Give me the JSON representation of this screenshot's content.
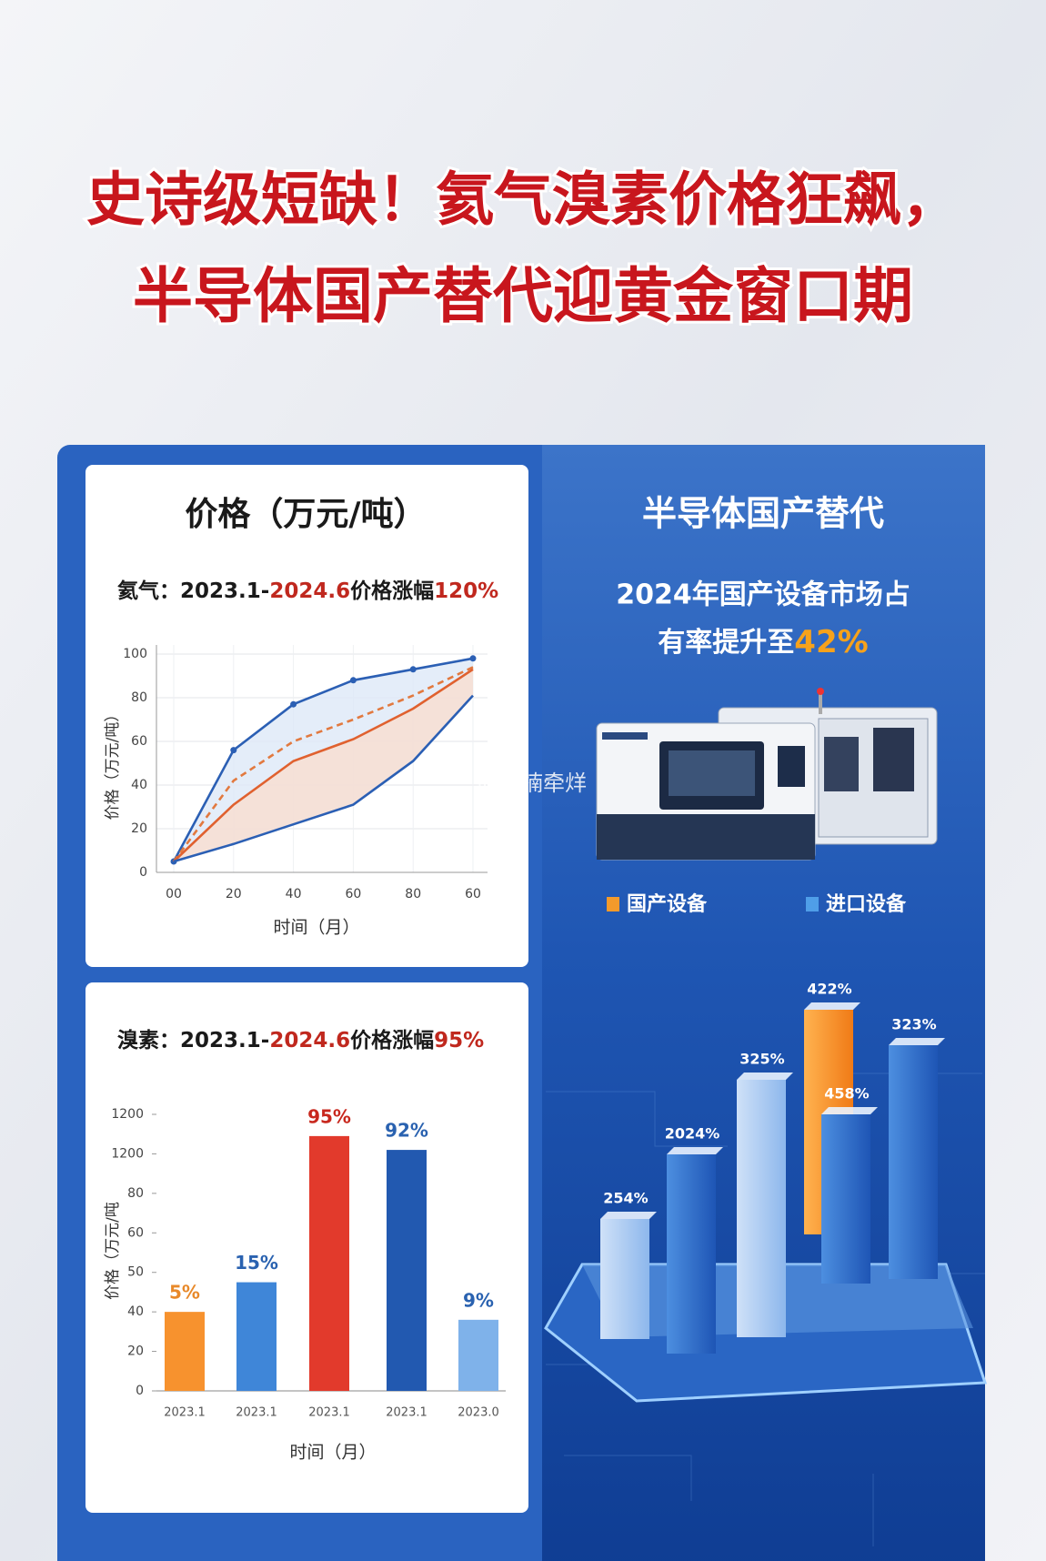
{
  "title_lines": [
    "史诗级短缺！氦气溴素价格狂飙，",
    "半导体国产替代迎黄金窗口期"
  ],
  "watermark": "@楠楠牵烊",
  "chart_data": [
    {
      "type": "line",
      "title": "价格（万元/吨）",
      "subtitle": [
        "氦气：2023.1-",
        "2024.6",
        "价格涨幅",
        "120%"
      ],
      "subtitle_colors": [
        "#1a1a1a",
        "#c0281e",
        "#1a1a1a",
        "#c0281e"
      ],
      "ylabel": "价格（万元/吨）",
      "xlabel": "时间（月）",
      "categories": [
        "00",
        "20",
        "40",
        "60",
        "80",
        "60"
      ],
      "ylim": [
        0,
        100
      ],
      "yticks": [
        0,
        20,
        40,
        60,
        80,
        100
      ],
      "grid": true,
      "series": [
        {
          "color": "#2b5fb4",
          "dash": false,
          "fill": "#dde9f7",
          "markers": true,
          "values": [
            5,
            56,
            77,
            88,
            93,
            98
          ]
        },
        {
          "color": "#e2793f",
          "dash": true,
          "values": [
            5,
            42,
            60,
            70,
            81,
            94
          ]
        },
        {
          "color": "#e0612f",
          "dash": false,
          "fill": "#f9ddcf",
          "values": [
            5,
            31,
            51,
            61,
            75,
            93
          ]
        },
        {
          "color": "#2b5fb4",
          "dash": false,
          "values": [
            5,
            13,
            22,
            31,
            51,
            81
          ]
        }
      ]
    },
    {
      "type": "bar",
      "subtitle": [
        "溴素：2023.1-",
        "2024.6",
        "价格涨幅",
        "95%"
      ],
      "subtitle_colors": [
        "#1a1a1a",
        "#c0281e",
        "#1a1a1a",
        "#c0281e"
      ],
      "ylabel": "价格（万元/吨",
      "xlabel": "时间（月）",
      "categories": [
        "2023.1",
        "2023.1",
        "2023.1",
        "2023.1",
        "2023.0"
      ],
      "values": [
        40,
        55,
        129,
        122,
        36
      ],
      "colors": [
        "#f7922e",
        "#3f86d8",
        "#e23a2c",
        "#2259b0",
        "#7fb2ea"
      ],
      "annotations": [
        "5%",
        "15%",
        "95%",
        "92%",
        "9%"
      ],
      "annotation_colors": [
        "#e8892a",
        "#2a62b0",
        "#c8281e",
        "#2a62b0",
        "#2a62b0"
      ],
      "ylim": [
        0,
        140
      ],
      "yticks": [
        0,
        20,
        40,
        {
          "value": 60,
          "label": "50"
        },
        {
          "value": 80,
          "label": "60"
        },
        {
          "value": 100,
          "label": "80"
        },
        {
          "value": 120,
          "label": "1200"
        },
        {
          "value": 140,
          "label": "1200"
        }
      ]
    }
  ],
  "panel": {
    "title": "半导体国产替代",
    "text": [
      "2024年国产设备市场占",
      "有率提升至",
      "42%"
    ],
    "legend": [
      {
        "label": "国产设备",
        "color": "#f39a2b"
      },
      {
        "label": "进口设备",
        "color": "#4f9ee8"
      }
    ],
    "bar_labels": [
      "254%",
      "2024%",
      "325%",
      "422%",
      "458%",
      "323%"
    ]
  }
}
